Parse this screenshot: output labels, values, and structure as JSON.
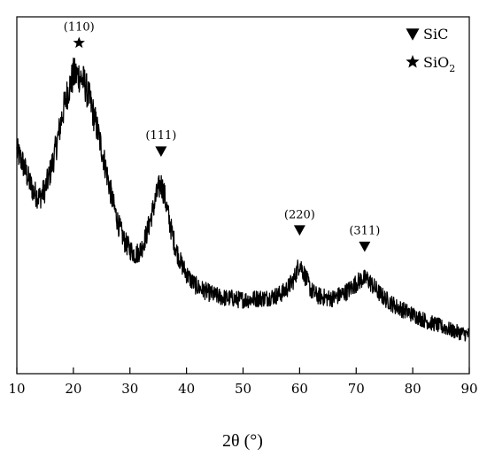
{
  "chart_data": {
    "type": "line",
    "xlabel": "2θ (°)",
    "ylabel": "",
    "xlim": [
      10,
      90
    ],
    "x_ticks": [
      10,
      20,
      30,
      40,
      50,
      60,
      70,
      80,
      90
    ],
    "y_ticks_labeled": false,
    "grid": false,
    "legend_position": "top-right",
    "legend": [
      {
        "marker": "triangle-down",
        "label": "SiC"
      },
      {
        "marker": "star",
        "label_main": "SiO",
        "label_sub": "2"
      }
    ],
    "series": [
      {
        "color": "#000000",
        "x": [
          10,
          11,
          12,
          13,
          14,
          15,
          16,
          17,
          18,
          19,
          20,
          21,
          22,
          23,
          24,
          25,
          26,
          27,
          28,
          29,
          30,
          31,
          32,
          33,
          34,
          35,
          35.5,
          36,
          37,
          38,
          39,
          40,
          41,
          42,
          43,
          44,
          45,
          46,
          47,
          48,
          49,
          50,
          51,
          52,
          53,
          54,
          55,
          56,
          57,
          58,
          59,
          60,
          61,
          62,
          63,
          64,
          65,
          66,
          67,
          68,
          69,
          70,
          71,
          72,
          73,
          74,
          75,
          76,
          77,
          78,
          79,
          80,
          81,
          82,
          83,
          84,
          85,
          86,
          87,
          88,
          89,
          90
        ],
        "y": [
          0.72,
          0.68,
          0.62,
          0.57,
          0.55,
          0.58,
          0.65,
          0.74,
          0.85,
          0.94,
          1.0,
          1.0,
          0.97,
          0.9,
          0.82,
          0.73,
          0.63,
          0.53,
          0.45,
          0.39,
          0.36,
          0.34,
          0.36,
          0.42,
          0.5,
          0.58,
          0.6,
          0.57,
          0.46,
          0.37,
          0.31,
          0.27,
          0.24,
          0.22,
          0.21,
          0.2,
          0.19,
          0.185,
          0.18,
          0.18,
          0.175,
          0.175,
          0.175,
          0.178,
          0.18,
          0.18,
          0.185,
          0.19,
          0.2,
          0.22,
          0.25,
          0.31,
          0.26,
          0.21,
          0.19,
          0.185,
          0.18,
          0.18,
          0.19,
          0.2,
          0.215,
          0.235,
          0.25,
          0.25,
          0.225,
          0.2,
          0.18,
          0.165,
          0.15,
          0.14,
          0.13,
          0.12,
          0.11,
          0.1,
          0.09,
          0.085,
          0.075,
          0.07,
          0.06,
          0.055,
          0.05,
          0.045
        ]
      }
    ],
    "annotations": [
      {
        "label": "(110)",
        "x": 21,
        "marker": "star"
      },
      {
        "label": "(111)",
        "x": 35.5,
        "marker": "triangle-down"
      },
      {
        "label": "(220)",
        "x": 60,
        "marker": "triangle-down"
      },
      {
        "label": "(311)",
        "x": 71.5,
        "marker": "triangle-down"
      }
    ]
  }
}
